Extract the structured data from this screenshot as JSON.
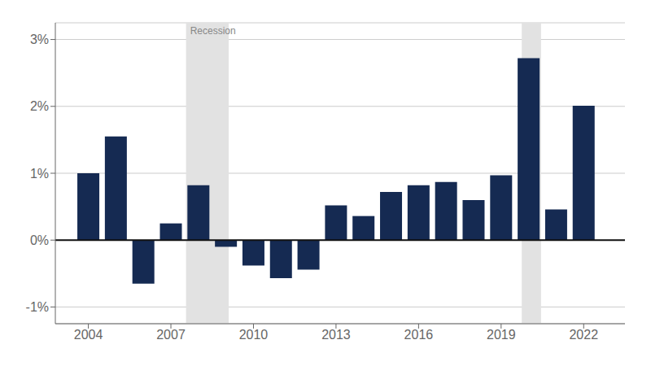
{
  "chart_data": {
    "type": "bar",
    "x": [
      2004,
      2005,
      2006,
      2007,
      2008,
      2009,
      2010,
      2011,
      2012,
      2013,
      2014,
      2015,
      2016,
      2017,
      2018,
      2019,
      2020,
      2021,
      2022
    ],
    "values": [
      1.0,
      1.55,
      -0.65,
      0.25,
      0.82,
      -0.1,
      -0.38,
      -0.57,
      -0.44,
      0.52,
      0.36,
      0.72,
      0.82,
      0.87,
      0.6,
      0.97,
      2.72,
      0.46,
      2.01
    ],
    "color": "#152a52",
    "xlim": [
      2002.8,
      2023.5
    ],
    "xticks": [
      2004,
      2007,
      2010,
      2013,
      2016,
      2019,
      2022
    ],
    "ylim": [
      -1.25,
      3.25
    ],
    "yticks": [
      {
        "value": -1,
        "label": "-1%"
      },
      {
        "value": 0,
        "label": "0%"
      },
      {
        "value": 1,
        "label": "1%"
      },
      {
        "value": 2,
        "label": "2%"
      },
      {
        "value": 3,
        "label": "3%"
      }
    ],
    "grid": true,
    "shaded_ranges": [
      {
        "start": 2007.55,
        "end": 2009.1,
        "color": "#e2e2e2",
        "label": "Recession",
        "label_color": "#888888"
      },
      {
        "start": 2019.75,
        "end": 2020.45,
        "color": "#e2e2e2"
      }
    ]
  }
}
